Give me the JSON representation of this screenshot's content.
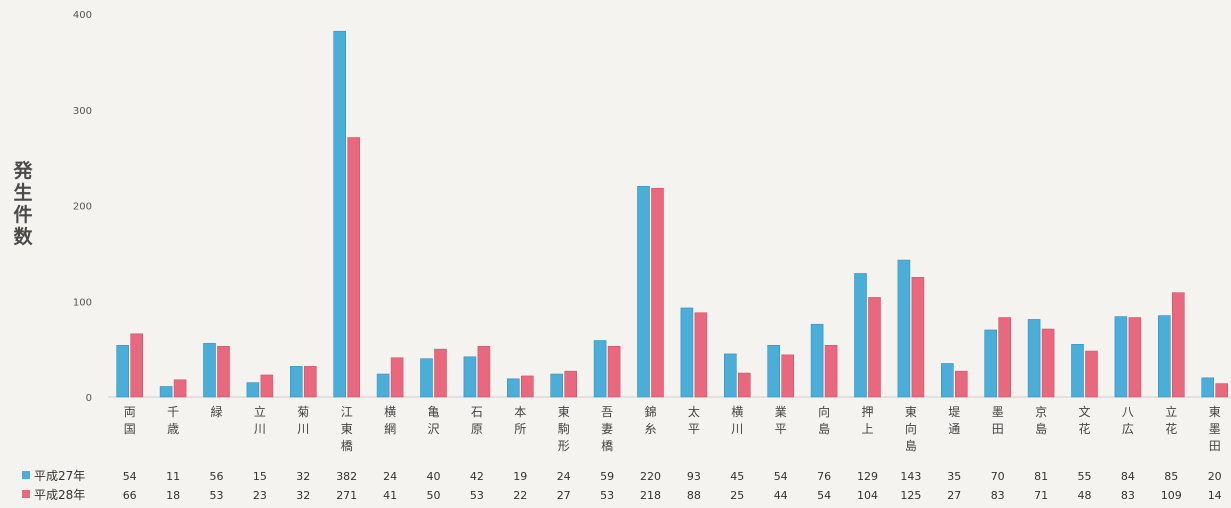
{
  "chart_data": {
    "type": "bar",
    "ylabel": "発生件数",
    "ylim": [
      0,
      400
    ],
    "yticks": [
      0,
      100,
      200,
      300,
      400
    ],
    "grid": false,
    "legend_placement": "table-left",
    "categories": [
      "両国",
      "千歳",
      "緑",
      "立川",
      "菊川",
      "江東橋",
      "横網",
      "亀沢",
      "石原",
      "本所",
      "東駒形",
      "吾妻橋",
      "錦糸",
      "太平",
      "横川",
      "業平",
      "向島",
      "押上",
      "東向島",
      "堤通",
      "墨田",
      "京島",
      "文花",
      "八広",
      "立花",
      "東墨田"
    ],
    "series": [
      {
        "name": "平成27年",
        "color": "#4aaed8",
        "values": [
          54,
          11,
          56,
          15,
          32,
          382,
          24,
          40,
          42,
          19,
          24,
          59,
          220,
          93,
          45,
          54,
          76,
          129,
          143,
          35,
          70,
          81,
          55,
          84,
          85,
          20
        ]
      },
      {
        "name": "平成28年",
        "color": "#e8687d",
        "values": [
          66,
          18,
          53,
          23,
          32,
          271,
          41,
          50,
          53,
          22,
          27,
          53,
          218,
          88,
          25,
          44,
          54,
          104,
          125,
          27,
          83,
          71,
          48,
          83,
          109,
          14
        ]
      }
    ]
  }
}
